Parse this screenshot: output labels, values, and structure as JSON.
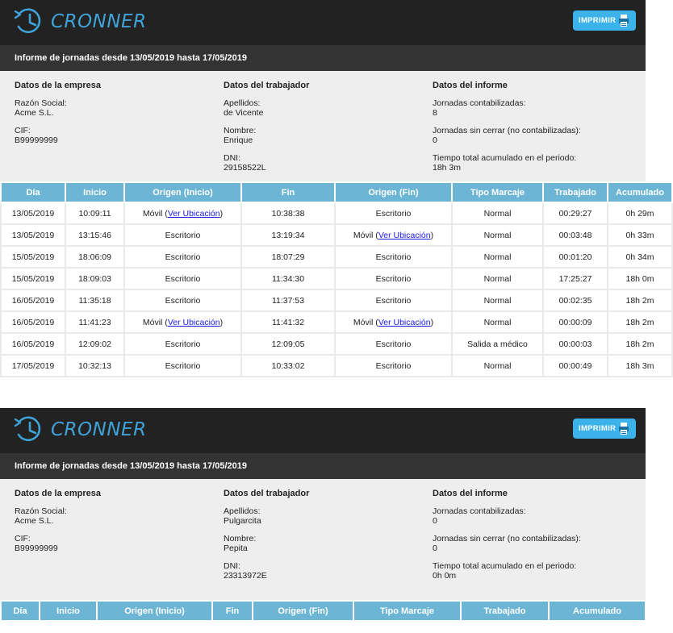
{
  "brand": {
    "name": "CRONNER",
    "print_label": "IMPRIMIR"
  },
  "reports": [
    {
      "title": "Informe de jornadas desde 13/05/2019 hasta 17/05/2019",
      "company": {
        "heading": "Datos de la empresa",
        "razon_label": "Razón Social:",
        "razon": "Acme S.L.",
        "cif_label": "CIF:",
        "cif": "B99999999"
      },
      "worker": {
        "heading": "Datos del trabajador",
        "apellidos_label": "Apellidos:",
        "apellidos": "de Vicente",
        "nombre_label": "Nombre:",
        "nombre": "Enrique",
        "dni_label": "DNI:",
        "dni": "29158522L"
      },
      "summary": {
        "heading": "Datos del informe",
        "contab_label": "Jornadas contabilizadas:",
        "contab": "8",
        "sin_cerrar_label": "Jornadas sin cerrar (no contabilizadas):",
        "sin_cerrar": "0",
        "tiempo_label": "Tiempo total acumulado en el periodo:",
        "tiempo": "18h 3m"
      },
      "columns": [
        "Día",
        "Inicio",
        "Origen (Inicio)",
        "Fin",
        "Origen (Fin)",
        "Tipo Marcaje",
        "Trabajado",
        "Acumulado"
      ],
      "rows": [
        {
          "dia": "13/05/2019",
          "inicio": "10:09:11",
          "origen_inicio": "Móvil",
          "origen_inicio_link": "Ver Ubicación",
          "fin": "10:38:38",
          "origen_fin": "Escritorio",
          "origen_fin_link": "",
          "tipo": "Normal",
          "trabajado": "00:29:27",
          "acumulado": "0h 29m"
        },
        {
          "dia": "13/05/2019",
          "inicio": "13:15:46",
          "origen_inicio": "Escritorio",
          "origen_inicio_link": "",
          "fin": "13:19:34",
          "origen_fin": "Móvil",
          "origen_fin_link": "Ver Ubicación",
          "tipo": "Normal",
          "trabajado": "00:03:48",
          "acumulado": "0h 33m"
        },
        {
          "dia": "15/05/2019",
          "inicio": "18:06:09",
          "origen_inicio": "Escritorio",
          "origen_inicio_link": "",
          "fin": "18:07:29",
          "origen_fin": "Escritorio",
          "origen_fin_link": "",
          "tipo": "Normal",
          "trabajado": "00:01:20",
          "acumulado": "0h 34m"
        },
        {
          "dia": "15/05/2019",
          "inicio": "18:09:03",
          "origen_inicio": "Escritorio",
          "origen_inicio_link": "",
          "fin": "11:34:30",
          "origen_fin": "Escritorio",
          "origen_fin_link": "",
          "tipo": "Normal",
          "trabajado": "17:25:27",
          "acumulado": "18h 0m"
        },
        {
          "dia": "16/05/2019",
          "inicio": "11:35:18",
          "origen_inicio": "Escritorio",
          "origen_inicio_link": "",
          "fin": "11:37:53",
          "origen_fin": "Escritorio",
          "origen_fin_link": "",
          "tipo": "Normal",
          "trabajado": "00:02:35",
          "acumulado": "18h 2m"
        },
        {
          "dia": "16/05/2019",
          "inicio": "11:41:23",
          "origen_inicio": "Móvil",
          "origen_inicio_link": "Ver Ubicación",
          "fin": "11:41:32",
          "origen_fin": "Móvil",
          "origen_fin_link": "Ver Ubicación",
          "tipo": "Normal",
          "trabajado": "00:00:09",
          "acumulado": "18h 2m"
        },
        {
          "dia": "16/05/2019",
          "inicio": "12:09:02",
          "origen_inicio": "Escritorio",
          "origen_inicio_link": "",
          "fin": "12:09:05",
          "origen_fin": "Escritorio",
          "origen_fin_link": "",
          "tipo": "Salida a médico",
          "trabajado": "00:00:03",
          "acumulado": "18h 2m"
        },
        {
          "dia": "17/05/2019",
          "inicio": "10:32:13",
          "origen_inicio": "Escritorio",
          "origen_inicio_link": "",
          "fin": "10:33:02",
          "origen_fin": "Escritorio",
          "origen_fin_link": "",
          "tipo": "Normal",
          "trabajado": "00:00:49",
          "acumulado": "18h 3m"
        }
      ]
    },
    {
      "title": "Informe de jornadas desde 13/05/2019 hasta 17/05/2019",
      "company": {
        "heading": "Datos de la empresa",
        "razon_label": "Razón Social:",
        "razon": "Acme S.L.",
        "cif_label": "CIF:",
        "cif": "B99999999"
      },
      "worker": {
        "heading": "Datos del trabajador",
        "apellidos_label": "Apellidos:",
        "apellidos": "Pulgarcita",
        "nombre_label": "Nombre:",
        "nombre": "Pepita",
        "dni_label": "DNI:",
        "dni": "23313972E"
      },
      "summary": {
        "heading": "Datos del informe",
        "contab_label": "Jornadas contabilizadas:",
        "contab": "0",
        "sin_cerrar_label": "Jornadas sin cerrar (no contabilizadas):",
        "sin_cerrar": "0",
        "tiempo_label": "Tiempo total acumulado en el periodo:",
        "tiempo": "0h 0m"
      },
      "columns": [
        "Día",
        "Inicio",
        "Origen (Inicio)",
        "Fin",
        "Origen (Fin)",
        "Tipo Marcaje",
        "Trabajado",
        "Acumulado"
      ],
      "rows": []
    }
  ],
  "colors": {
    "accent": "#3bb3ea",
    "header_bg": "#222222",
    "subbar_bg": "#333333",
    "table_header": "#6cb5d5",
    "info_bg": "#eeeeee",
    "link": "#1a1ae6"
  }
}
